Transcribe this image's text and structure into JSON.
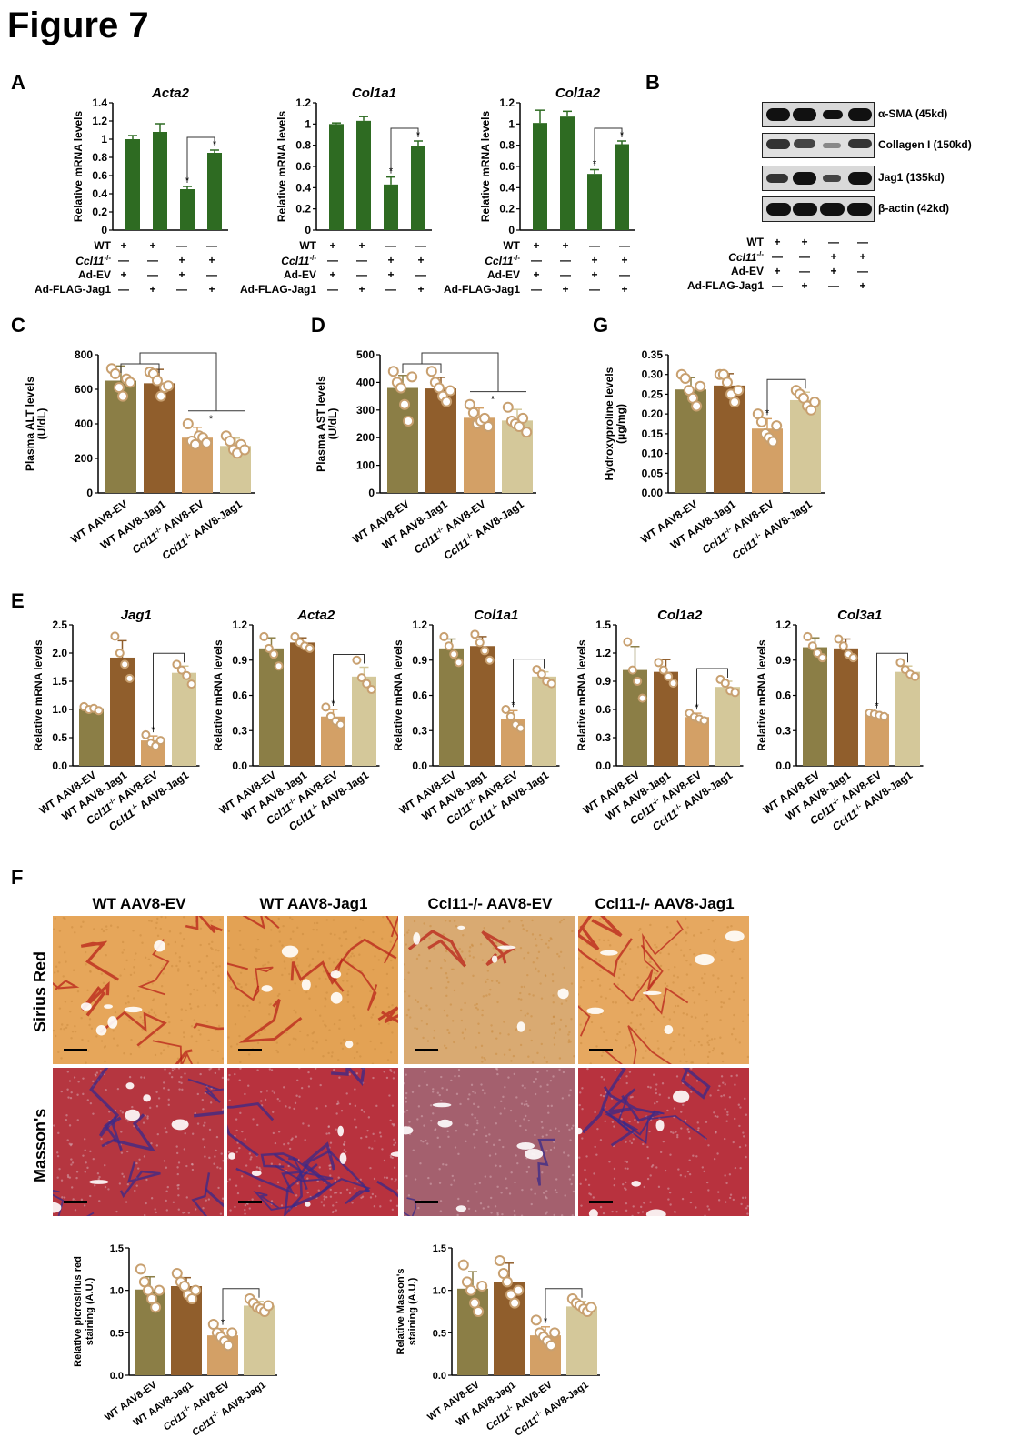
{
  "figure_title": "Figure 7",
  "panels": {
    "A": "A",
    "B": "B",
    "C": "C",
    "D": "D",
    "G": "G",
    "E": "E",
    "F": "F"
  },
  "colors": {
    "green": "#2e6b22",
    "olive": "#8b7e46",
    "brown": "#905e2c",
    "tan": "#d3a066",
    "beige": "#d4c89a",
    "dot": "#c8a070"
  },
  "panel_A": {
    "ylabel": "Relative mRNA levels",
    "row_labels": [
      "WT",
      "Ccl11-/-",
      "Ad-EV",
      "Ad-FLAG-Jag1"
    ],
    "rows": [
      [
        "+",
        "+",
        "—",
        "—"
      ],
      [
        "—",
        "—",
        "+",
        "+"
      ],
      [
        "+",
        "—",
        "+",
        "—"
      ],
      [
        "—",
        "+",
        "—",
        "+"
      ]
    ]
  },
  "panel_B": {
    "bands": [
      "α-SMA (45kd)",
      "Collagen I (150kd)",
      "Jag1 (135kd)",
      "β-actin (42kd)"
    ],
    "row_labels": [
      "WT",
      "Ccl11-/-",
      "Ad-EV",
      "Ad-FLAG-Jag1"
    ],
    "rows": [
      [
        "+",
        "+",
        "—",
        "—"
      ],
      [
        "—",
        "—",
        "+",
        "+"
      ],
      [
        "+",
        "—",
        "+",
        "—"
      ],
      [
        "—",
        "+",
        "—",
        "+"
      ]
    ]
  },
  "group_labels": [
    "WT AAV8-EV",
    "WT AAV8-Jag1",
    "Ccl11-/- AAV8-EV",
    "Ccl11-/- AAV8-Jag1"
  ],
  "panel_F": {
    "columns": [
      "WT AAV8-EV",
      "WT AAV8-Jag1",
      "Ccl11-/- AAV8-EV",
      "Ccl11-/- AAV8-Jag1"
    ],
    "rows": [
      "Sirius Red",
      "Masson's"
    ]
  },
  "chart_data": [
    {
      "id": "A1",
      "type": "bar",
      "title": "Acta2",
      "ylabel": "Relative mRNA levels",
      "ylim": [
        0,
        1.4
      ],
      "yticks": [
        0,
        0.2,
        0.4,
        0.6,
        0.8,
        1,
        1.2,
        1.4
      ],
      "tick_labels": [
        "0",
        "0.2",
        "0.4",
        "0.6",
        "0.8",
        "1",
        "1.2",
        "1.4"
      ],
      "values": [
        1.0,
        1.08,
        0.45,
        0.85
      ],
      "errors": [
        0.04,
        0.09,
        0.03,
        0.03
      ],
      "sig": "*",
      "bracket": [
        2,
        3
      ]
    },
    {
      "id": "A2",
      "type": "bar",
      "title": "Col1a1",
      "ylabel": "Relative mRNA levels",
      "ylim": [
        0,
        1.2
      ],
      "yticks": [
        0,
        0.2,
        0.4,
        0.6,
        0.8,
        1,
        1.2
      ],
      "tick_labels": [
        "0",
        "0.2",
        "0.4",
        "0.6",
        "0.8",
        "1",
        "1.2"
      ],
      "values": [
        1.0,
        1.03,
        0.43,
        0.79
      ],
      "errors": [
        0.01,
        0.04,
        0.07,
        0.05
      ],
      "sig": "*",
      "bracket": [
        2,
        3
      ]
    },
    {
      "id": "A3",
      "type": "bar",
      "title": "Col1a2",
      "ylabel": "Relative mRNA levels",
      "ylim": [
        0,
        1.2
      ],
      "yticks": [
        0,
        0.2,
        0.4,
        0.6,
        0.8,
        1,
        1.2
      ],
      "tick_labels": [
        "0",
        "0.2",
        "0.4",
        "0.6",
        "0.8",
        "1",
        "1.2"
      ],
      "values": [
        1.01,
        1.07,
        0.53,
        0.81
      ],
      "errors": [
        0.12,
        0.05,
        0.04,
        0.03
      ],
      "sig": "*",
      "bracket": [
        2,
        3
      ]
    },
    {
      "id": "C",
      "type": "bar",
      "ylabel": "Plasma ALT levels (U/dL)",
      "ylim": [
        0,
        800
      ],
      "yticks": [
        0,
        200,
        400,
        600,
        800
      ],
      "tick_labels": [
        "0",
        "200",
        "400",
        "600",
        "800"
      ],
      "values": [
        650,
        635,
        320,
        272
      ],
      "errors": [
        85,
        80,
        60,
        45
      ],
      "points": [
        [
          720,
          690,
          610,
          560,
          660,
          640
        ],
        [
          700,
          690,
          650,
          560,
          610,
          620
        ],
        [
          400,
          300,
          280,
          330,
          320,
          290
        ],
        [
          330,
          300,
          250,
          230,
          280,
          250
        ]
      ],
      "sig": "*",
      "bracket": "groups"
    },
    {
      "id": "D",
      "type": "bar",
      "ylabel": "Plasma AST levels (U/dL)",
      "ylim": [
        0,
        500
      ],
      "yticks": [
        0,
        100,
        200,
        300,
        400,
        500
      ],
      "tick_labels": [
        "0",
        "100",
        "200",
        "300",
        "400",
        "500"
      ],
      "values": [
        380,
        378,
        272,
        262
      ],
      "errors": [
        45,
        40,
        35,
        40
      ],
      "points": [
        [
          440,
          400,
          380,
          320,
          260,
          420
        ],
        [
          440,
          400,
          380,
          350,
          330,
          370
        ],
        [
          320,
          290,
          250,
          260,
          270,
          240
        ],
        [
          310,
          260,
          250,
          240,
          270,
          220
        ]
      ],
      "sig": "*",
      "bracket": "groups"
    },
    {
      "id": "G",
      "type": "bar",
      "ylabel": "Hydroxyproline levels (μg/mg)",
      "ylim": [
        0,
        0.35
      ],
      "yticks": [
        0,
        0.05,
        0.1,
        0.15,
        0.2,
        0.25,
        0.3,
        0.35
      ],
      "tick_labels": [
        "0.00",
        "0.05",
        "0.10",
        "0.15",
        "0.20",
        "0.25",
        "0.30",
        "0.35"
      ],
      "values": [
        0.262,
        0.272,
        0.163,
        0.235
      ],
      "errors": [
        0.03,
        0.03,
        0.025,
        0.02
      ],
      "points": [
        [
          0.3,
          0.29,
          0.26,
          0.24,
          0.22,
          0.27
        ],
        [
          0.3,
          0.3,
          0.28,
          0.25,
          0.23,
          0.26
        ],
        [
          0.2,
          0.18,
          0.15,
          0.14,
          0.13,
          0.17
        ],
        [
          0.26,
          0.25,
          0.24,
          0.22,
          0.21,
          0.23
        ]
      ],
      "sig": "*",
      "bracket": [
        2,
        3
      ]
    },
    {
      "id": "E1",
      "type": "bar",
      "title": "Jag1",
      "ylabel": "Relative mRNA levels",
      "ylim": [
        0,
        2.5
      ],
      "yticks": [
        0,
        0.5,
        1,
        1.5,
        2,
        2.5
      ],
      "tick_labels": [
        "0.0",
        "0.5",
        "1.0",
        "1.5",
        "2.0",
        "2.5"
      ],
      "values": [
        1.02,
        1.92,
        0.45,
        1.65
      ],
      "errors": [
        0.03,
        0.3,
        0.08,
        0.12
      ],
      "points": [
        [
          1.05,
          1.0,
          1.02,
          0.98
        ],
        [
          2.3,
          2.0,
          1.8,
          1.55
        ],
        [
          0.55,
          0.4,
          0.35,
          0.45
        ],
        [
          1.8,
          1.7,
          1.6,
          1.45
        ]
      ],
      "sig": "*",
      "bracket": [
        2,
        3
      ]
    },
    {
      "id": "E2",
      "type": "bar",
      "title": "Acta2",
      "ylabel": "Relative mRNA levels",
      "ylim": [
        0,
        1.2
      ],
      "yticks": [
        0,
        0.3,
        0.6,
        0.9,
        1.2
      ],
      "tick_labels": [
        "0.0",
        "0.3",
        "0.6",
        "0.9",
        "1.2"
      ],
      "values": [
        1.0,
        1.05,
        0.42,
        0.76
      ],
      "errors": [
        0.09,
        0.04,
        0.06,
        0.08
      ],
      "points": [
        [
          1.1,
          1.0,
          0.95,
          0.85
        ],
        [
          1.1,
          1.05,
          1.02,
          1.0
        ],
        [
          0.5,
          0.42,
          0.38,
          0.35
        ],
        [
          0.9,
          0.75,
          0.7,
          0.65
        ]
      ],
      "sig": "*",
      "bracket": [
        2,
        3
      ]
    },
    {
      "id": "E3",
      "type": "bar",
      "title": "Col1a1",
      "ylabel": "Relative mRNA levels",
      "ylim": [
        0,
        1.2
      ],
      "yticks": [
        0,
        0.3,
        0.6,
        0.9,
        1.2
      ],
      "tick_labels": [
        "0.0",
        "0.3",
        "0.6",
        "0.9",
        "1.2"
      ],
      "values": [
        1.0,
        1.02,
        0.4,
        0.76
      ],
      "errors": [
        0.08,
        0.08,
        0.07,
        0.04
      ],
      "points": [
        [
          1.1,
          1.02,
          0.95,
          0.88
        ],
        [
          1.12,
          1.05,
          0.98,
          0.9
        ],
        [
          0.48,
          0.42,
          0.35,
          0.32
        ],
        [
          0.82,
          0.78,
          0.72,
          0.7
        ]
      ],
      "sig": "*",
      "bracket": [
        2,
        3
      ]
    },
    {
      "id": "E4",
      "type": "bar",
      "title": "Col1a2",
      "ylabel": "Relative mRNA levels",
      "ylim": [
        0,
        1.5
      ],
      "yticks": [
        0,
        0.3,
        0.6,
        0.9,
        1.2,
        1.5
      ],
      "tick_labels": [
        "0.0",
        "0.3",
        "0.6",
        "0.9",
        "1.2",
        "1.5"
      ],
      "values": [
        1.02,
        1.0,
        0.52,
        0.84
      ],
      "errors": [
        0.25,
        0.13,
        0.04,
        0.06
      ],
      "points": [
        [
          1.32,
          1.02,
          0.9,
          0.72
        ],
        [
          1.1,
          1.02,
          0.95,
          0.88
        ],
        [
          0.56,
          0.52,
          0.5,
          0.48
        ],
        [
          0.92,
          0.88,
          0.8,
          0.78
        ]
      ],
      "sig": "*",
      "bracket": [
        2,
        3
      ]
    },
    {
      "id": "E5",
      "type": "bar",
      "title": "Col3a1",
      "ylabel": "Relative mRNA levels",
      "ylim": [
        0,
        1.2
      ],
      "yticks": [
        0,
        0.3,
        0.6,
        0.9,
        1.2
      ],
      "tick_labels": [
        "0.0",
        "0.3",
        "0.6",
        "0.9",
        "1.2"
      ],
      "values": [
        1.01,
        1.0,
        0.44,
        0.8
      ],
      "errors": [
        0.08,
        0.08,
        0.02,
        0.05
      ],
      "points": [
        [
          1.1,
          1.02,
          0.96,
          0.92
        ],
        [
          1.08,
          1.02,
          0.95,
          0.92
        ],
        [
          0.45,
          0.44,
          0.43,
          0.42
        ],
        [
          0.88,
          0.82,
          0.78,
          0.76
        ]
      ],
      "sig": "*",
      "bracket": [
        2,
        3
      ]
    },
    {
      "id": "F1",
      "type": "bar",
      "ylabel": "Relative picrosirius red staining (A.U.)",
      "ylim": [
        0,
        1.5
      ],
      "yticks": [
        0,
        0.5,
        1,
        1.5
      ],
      "tick_labels": [
        "0.0",
        "0.5",
        "1.0",
        "1.5"
      ],
      "values": [
        1.01,
        1.05,
        0.47,
        0.82
      ],
      "errors": [
        0.15,
        0.1,
        0.08,
        0.05
      ],
      "points": [
        [
          1.25,
          1.1,
          1.0,
          0.9,
          0.8,
          1.0
        ],
        [
          1.2,
          1.1,
          1.05,
          0.95,
          0.9,
          1.0
        ],
        [
          0.6,
          0.5,
          0.45,
          0.4,
          0.35,
          0.5
        ],
        [
          0.9,
          0.85,
          0.8,
          0.78,
          0.75,
          0.82
        ]
      ],
      "sig": "*",
      "bracket": [
        2,
        3
      ]
    },
    {
      "id": "F2",
      "type": "bar",
      "ylabel": "Relative Masson's staining (A.U.)",
      "ylim": [
        0,
        1.5
      ],
      "yticks": [
        0,
        0.5,
        1,
        1.5
      ],
      "tick_labels": [
        "0.0",
        "0.5",
        "1.0",
        "1.5"
      ],
      "values": [
        1.02,
        1.1,
        0.47,
        0.81
      ],
      "errors": [
        0.2,
        0.22,
        0.1,
        0.06
      ],
      "points": [
        [
          1.3,
          1.1,
          1.0,
          0.85,
          0.75,
          1.05
        ],
        [
          1.35,
          1.2,
          1.1,
          0.95,
          0.85,
          1.0
        ],
        [
          0.65,
          0.5,
          0.45,
          0.4,
          0.35,
          0.5
        ],
        [
          0.9,
          0.85,
          0.82,
          0.78,
          0.75,
          0.8
        ]
      ],
      "sig": "*",
      "bracket": [
        2,
        3
      ]
    }
  ]
}
